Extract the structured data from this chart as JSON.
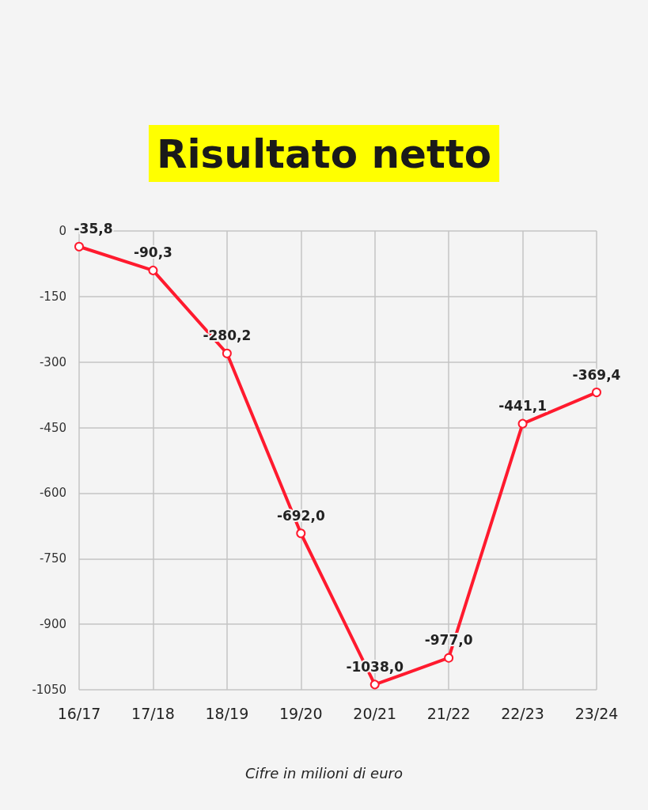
{
  "chart_data": {
    "type": "line",
    "title": "Risultato netto",
    "categories": [
      "16/17",
      "17/18",
      "18/19",
      "19/20",
      "20/21",
      "21/22",
      "22/23",
      "23/24"
    ],
    "series": [
      {
        "color": "#ff1a2e",
        "values": [
          -35.8,
          -90.3,
          -280.2,
          -692.0,
          -1038.0,
          -977.0,
          -441.1,
          -369.4
        ],
        "value_labels": [
          "-35,8",
          "-90,3",
          "-280,2",
          "-692,0",
          "-1038,0",
          "-977,0",
          "-441,1",
          "-369,4"
        ]
      }
    ],
    "ylim": [
      -1050,
      0
    ],
    "yticks": [
      0,
      -150,
      -300,
      -450,
      -600,
      -750,
      -900,
      -1050
    ],
    "grid": true,
    "marker": "circle",
    "line_style": "solid",
    "annotations": [
      "Cifre in milioni di euro"
    ]
  }
}
